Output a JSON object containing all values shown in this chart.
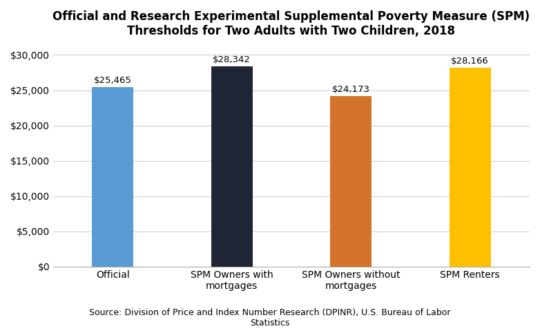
{
  "categories": [
    "Official",
    "SPM Owners with\nmortgages",
    "SPM Owners without\nmortgages",
    "SPM Renters"
  ],
  "values": [
    25465,
    28342,
    24173,
    28166
  ],
  "labels": [
    "$25,465",
    "$28,342",
    "$24,173",
    "$28,166"
  ],
  "bar_colors": [
    "#5b9bd5",
    "#1f2535",
    "#d4732a",
    "#ffc000"
  ],
  "title_line1": "Official and Research Experimental Supplemental Poverty Measure (SPM)",
  "title_line2": "Thresholds for Two Adults with Two Children, 2018",
  "ylim": [
    0,
    31000
  ],
  "yticks": [
    0,
    5000,
    10000,
    15000,
    20000,
    25000,
    30000
  ],
  "source_text": "Source: Division of Price and Index Number Research (DPINR), U.S. Bureau of Labor\nStatistics",
  "background_color": "#ffffff",
  "grid_color": "#d0d0d0",
  "title_fontsize": 12,
  "label_fontsize": 9.5,
  "tick_fontsize": 10,
  "source_fontsize": 9,
  "bar_width": 0.35,
  "x_positions": [
    0,
    1,
    2,
    3
  ]
}
